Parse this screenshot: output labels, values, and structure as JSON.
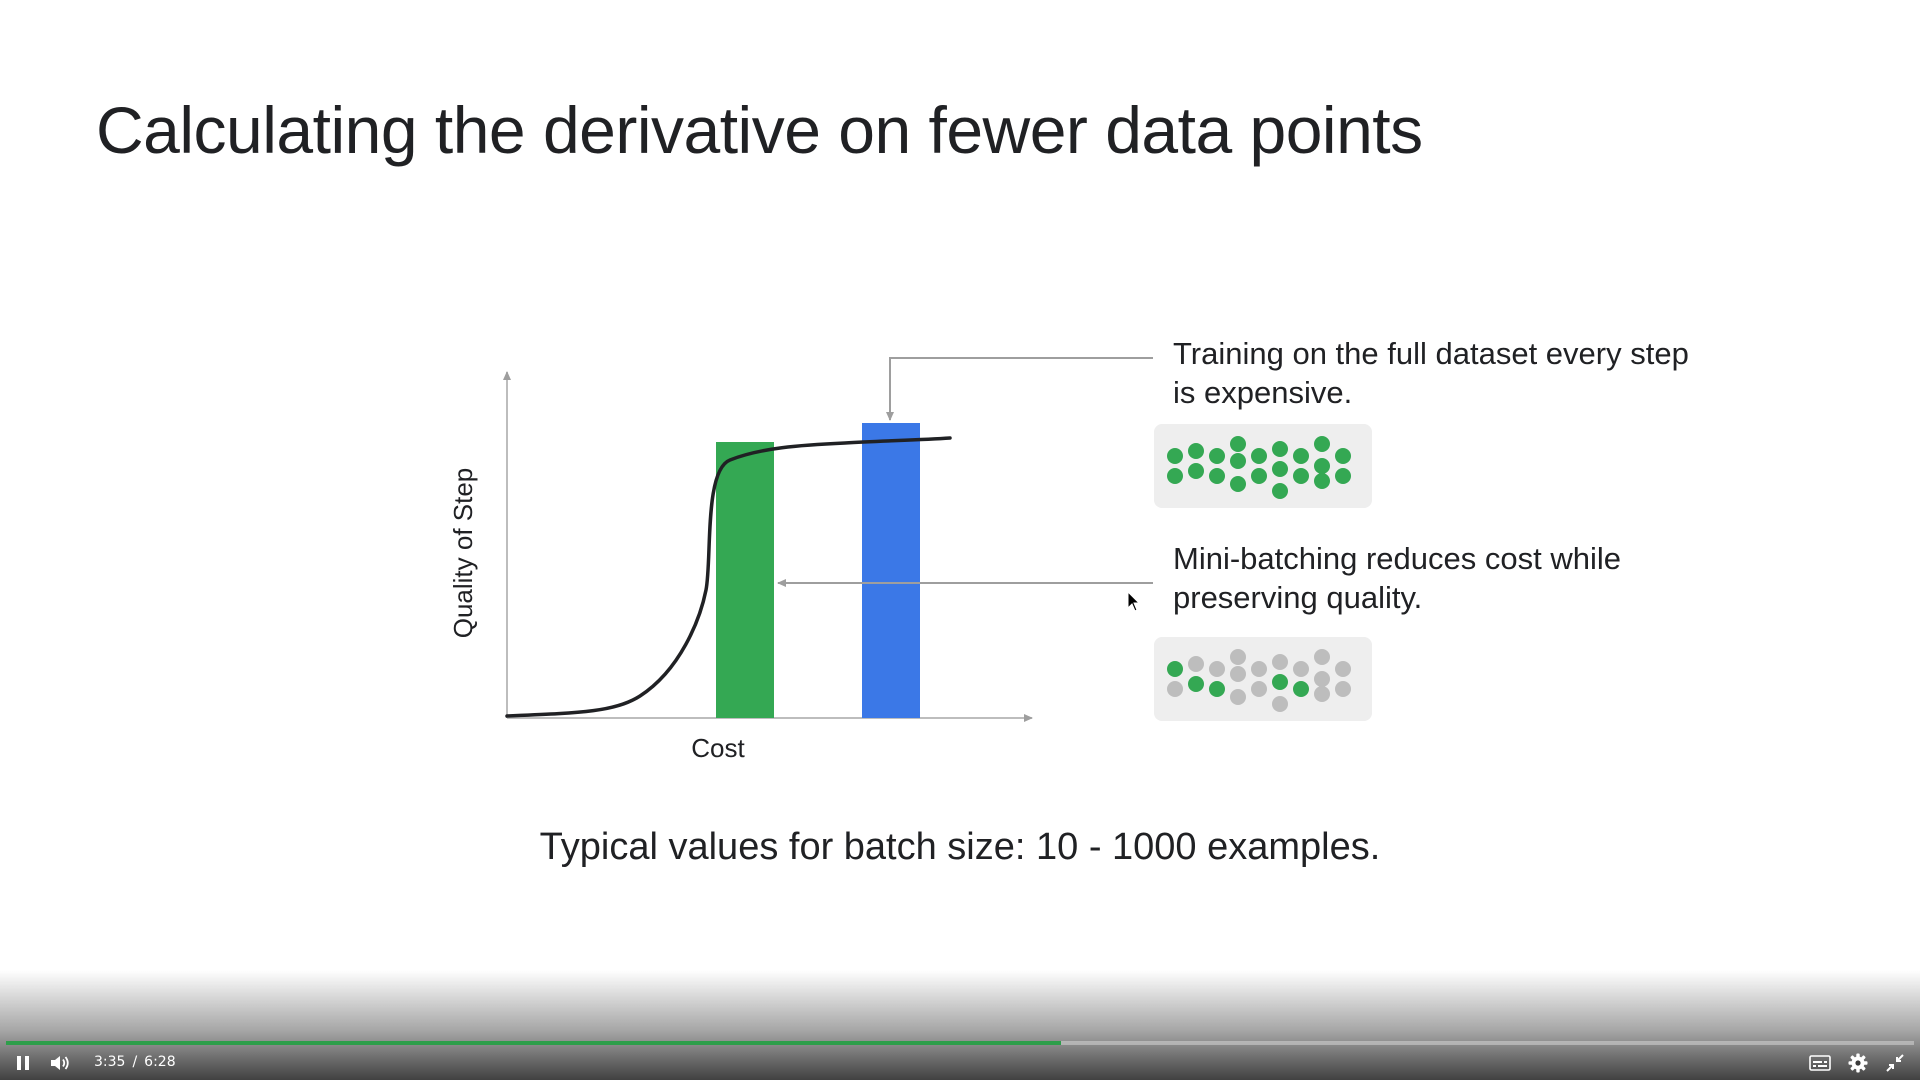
{
  "slide": {
    "title": "Calculating the derivative on fewer data points",
    "chart_data": {
      "type": "bar",
      "xlabel": "Cost",
      "ylabel": "Quality of Step",
      "bars": [
        {
          "color": "#34a853",
          "value": 0.8
        },
        {
          "color": "#3b78e7",
          "value": 0.86
        }
      ]
    },
    "annotations": {
      "full_dataset": "Training on the full dataset every step is expensive.",
      "mini_batch": "Mini-batching reduces cost while preserving quality."
    },
    "footnote": "Typical values for batch size: 10 - 1000 examples.",
    "colors": {
      "green": "#34a853",
      "blue": "#3b78e7",
      "grey_dot": "#bdbdbd",
      "dot_panel": "#eeeeee"
    }
  },
  "player": {
    "current_time": "3:35",
    "separator": "/",
    "duration": "6:28",
    "progress_fraction": 0.553,
    "progress_color": "#2e9e4b",
    "icons": [
      "pause-icon",
      "volume-icon",
      "captions-icon",
      "gear-icon",
      "exit-fullscreen-icon"
    ]
  }
}
